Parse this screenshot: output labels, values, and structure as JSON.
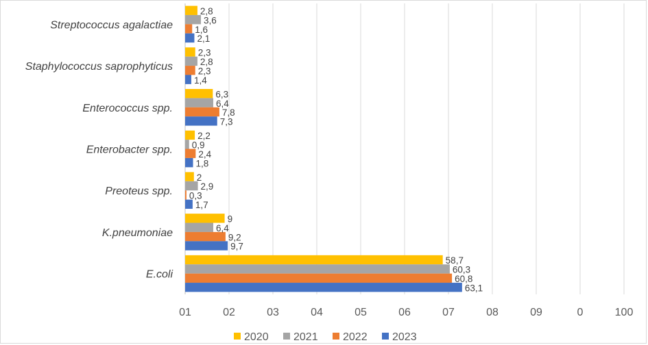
{
  "chart_data": {
    "type": "bar",
    "orientation": "horizontal",
    "categories": [
      "Streptococcus agalactiae",
      "Staphylococcus saprophyticus",
      "Enterococcus spp.",
      "Enterobacter spp.",
      "Preoteus spp.",
      "K.pneumoniae",
      "E.coli"
    ],
    "series": [
      {
        "name": "2020",
        "color": "#FFC000",
        "values": [
          2.8,
          2.3,
          6.3,
          2.2,
          2,
          9,
          58.7
        ],
        "labels": [
          "2,8",
          "2,3",
          "6,3",
          "2,2",
          "2",
          "9",
          "58,7"
        ]
      },
      {
        "name": "2021",
        "color": "#A5A5A5",
        "values": [
          3.6,
          2.8,
          6.4,
          0.9,
          2.9,
          6.4,
          60.3
        ],
        "labels": [
          "3,6",
          "2,8",
          "6,4",
          "0,9",
          "2,9",
          "6,4",
          "60,3"
        ]
      },
      {
        "name": "2022",
        "color": "#ED7D31",
        "values": [
          1.6,
          2.3,
          7.8,
          2.4,
          0.3,
          9.2,
          60.8
        ],
        "labels": [
          "1,6",
          "2,3",
          "7,8",
          "2,4",
          "0,3",
          "9,2",
          "60,8"
        ]
      },
      {
        "name": "2023",
        "color": "#4472C4",
        "values": [
          2.1,
          1.4,
          7.3,
          1.8,
          1.7,
          9.7,
          63.1
        ],
        "labels": [
          "2,1",
          "1,4",
          "7,3",
          "1,8",
          "1,7",
          "9,7",
          "63,1"
        ]
      }
    ],
    "x_tick_labels": [
      "01",
      "02",
      "03",
      "04",
      "05",
      "06",
      "07",
      "08",
      "09",
      "0",
      "100"
    ],
    "xlim": [
      0,
      100
    ],
    "grid": true,
    "legend": "bottom",
    "title": "",
    "xlabel": "",
    "ylabel": ""
  }
}
